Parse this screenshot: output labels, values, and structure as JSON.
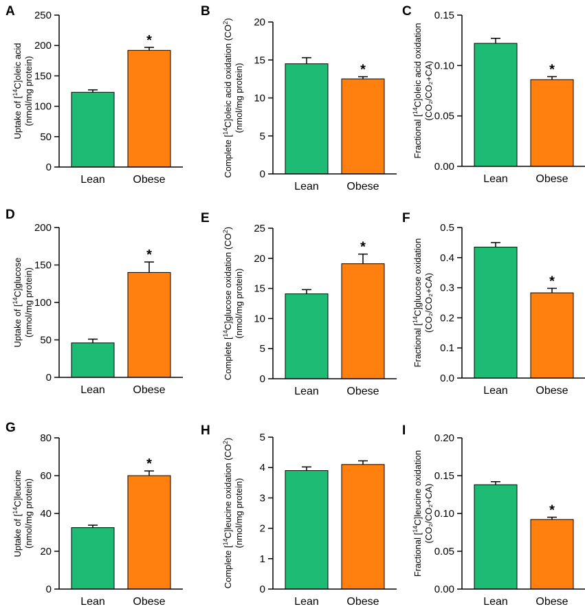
{
  "colors": {
    "lean": "#1dbb74",
    "obese": "#ff7f0f",
    "axis": "#000000"
  },
  "chart_data": [
    {
      "panel": "A",
      "type": "bar",
      "categories": [
        "Lean",
        "Obese"
      ],
      "values": [
        123,
        192
      ],
      "errors": [
        4,
        5
      ],
      "significant": [
        false,
        true
      ],
      "ylabel_parts": [
        "Uptake of [",
        "14",
        "C]oleic acid"
      ],
      "ylabel_line2": "(nmol/mg protein)",
      "ylim": [
        0,
        250
      ],
      "yticks": [
        0,
        50,
        100,
        150,
        200,
        250
      ],
      "decimals": 0
    },
    {
      "panel": "B",
      "type": "bar",
      "categories": [
        "Lean",
        "Obese"
      ],
      "values": [
        14.5,
        12.5
      ],
      "errors": [
        0.8,
        0.3
      ],
      "significant": [
        false,
        true
      ],
      "ylabel_parts": [
        "Complete [",
        "14",
        "C]oleic acid oxidation (CO",
        "2",
        ")"
      ],
      "ylabel_line2": "(nmol/mg protein)",
      "ylim": [
        0,
        20
      ],
      "yticks": [
        0,
        5,
        10,
        15,
        20
      ],
      "decimals": 0
    },
    {
      "panel": "C",
      "type": "bar",
      "categories": [
        "Lean",
        "Obese"
      ],
      "values": [
        0.122,
        0.086
      ],
      "errors": [
        0.005,
        0.003
      ],
      "significant": [
        false,
        true
      ],
      "ylabel_parts": [
        "Fractional [",
        "14",
        "C]oleic acid oxidation"
      ],
      "ylabel_line2": "(CO₂/CO₂+CA)",
      "ylim": [
        0,
        0.15
      ],
      "yticks": [
        0,
        0.05,
        0.1,
        0.15
      ],
      "decimals": 2
    },
    {
      "panel": "D",
      "type": "bar",
      "categories": [
        "Lean",
        "Obese"
      ],
      "values": [
        46,
        140
      ],
      "errors": [
        5,
        14
      ],
      "significant": [
        false,
        true
      ],
      "ylabel_parts": [
        "Uptake of [",
        "14",
        "C]glucose"
      ],
      "ylabel_line2": "(nmol/mg protein)",
      "ylim": [
        0,
        200
      ],
      "yticks": [
        0,
        50,
        100,
        150,
        200
      ],
      "decimals": 0
    },
    {
      "panel": "E",
      "type": "bar",
      "categories": [
        "Lean",
        "Obese"
      ],
      "values": [
        14.1,
        19.1
      ],
      "errors": [
        0.7,
        1.6
      ],
      "significant": [
        false,
        true
      ],
      "ylabel_parts": [
        "Complete [",
        "14",
        "C]glucose oxidation (CO",
        "2",
        ")"
      ],
      "ylabel_line2": "(nmol/mg protein)",
      "ylim": [
        0,
        25
      ],
      "yticks": [
        0,
        5,
        10,
        15,
        20,
        25
      ],
      "decimals": 0
    },
    {
      "panel": "F",
      "type": "bar",
      "categories": [
        "Lean",
        "Obese"
      ],
      "values": [
        0.435,
        0.283
      ],
      "errors": [
        0.015,
        0.015
      ],
      "significant": [
        false,
        true
      ],
      "ylabel_parts": [
        "Fractional [",
        "14",
        "C]glucose oxidation"
      ],
      "ylabel_line2": "(CO₂/CO₂+CA)",
      "ylim": [
        0,
        0.5
      ],
      "yticks": [
        0,
        0.1,
        0.2,
        0.3,
        0.4,
        0.5
      ],
      "decimals": 1
    },
    {
      "panel": "G",
      "type": "bar",
      "categories": [
        "Lean",
        "Obese"
      ],
      "values": [
        32.5,
        60
      ],
      "errors": [
        1.3,
        2.5
      ],
      "significant": [
        false,
        true
      ],
      "ylabel_parts": [
        "Uptake of [",
        "14",
        "C]leucine"
      ],
      "ylabel_line2": "(nmol/mg protein)",
      "ylim": [
        0,
        80
      ],
      "yticks": [
        0,
        20,
        40,
        60,
        80
      ],
      "decimals": 0
    },
    {
      "panel": "H",
      "type": "bar",
      "categories": [
        "Lean",
        "Obese"
      ],
      "values": [
        3.9,
        4.1
      ],
      "errors": [
        0.12,
        0.12
      ],
      "significant": [
        false,
        false
      ],
      "ylabel_parts": [
        "Complete [",
        "14",
        "C]leucine oxidation (CO",
        "2",
        ")"
      ],
      "ylabel_line2": "(nmol/mg protein)",
      "ylim": [
        0,
        5
      ],
      "yticks": [
        0,
        1,
        2,
        3,
        4,
        5
      ],
      "decimals": 0
    },
    {
      "panel": "I",
      "type": "bar",
      "categories": [
        "Lean",
        "Obese"
      ],
      "values": [
        0.138,
        0.092
      ],
      "errors": [
        0.004,
        0.003
      ],
      "significant": [
        false,
        true
      ],
      "ylabel_parts": [
        "Fractional [",
        "14",
        "C]leucine oxidation"
      ],
      "ylabel_line2": "(CO₂/CO₂+CA)",
      "ylim": [
        0,
        0.2
      ],
      "yticks": [
        0,
        0.05,
        0.1,
        0.15,
        0.2
      ],
      "decimals": 2
    }
  ],
  "significance_marker": "*"
}
